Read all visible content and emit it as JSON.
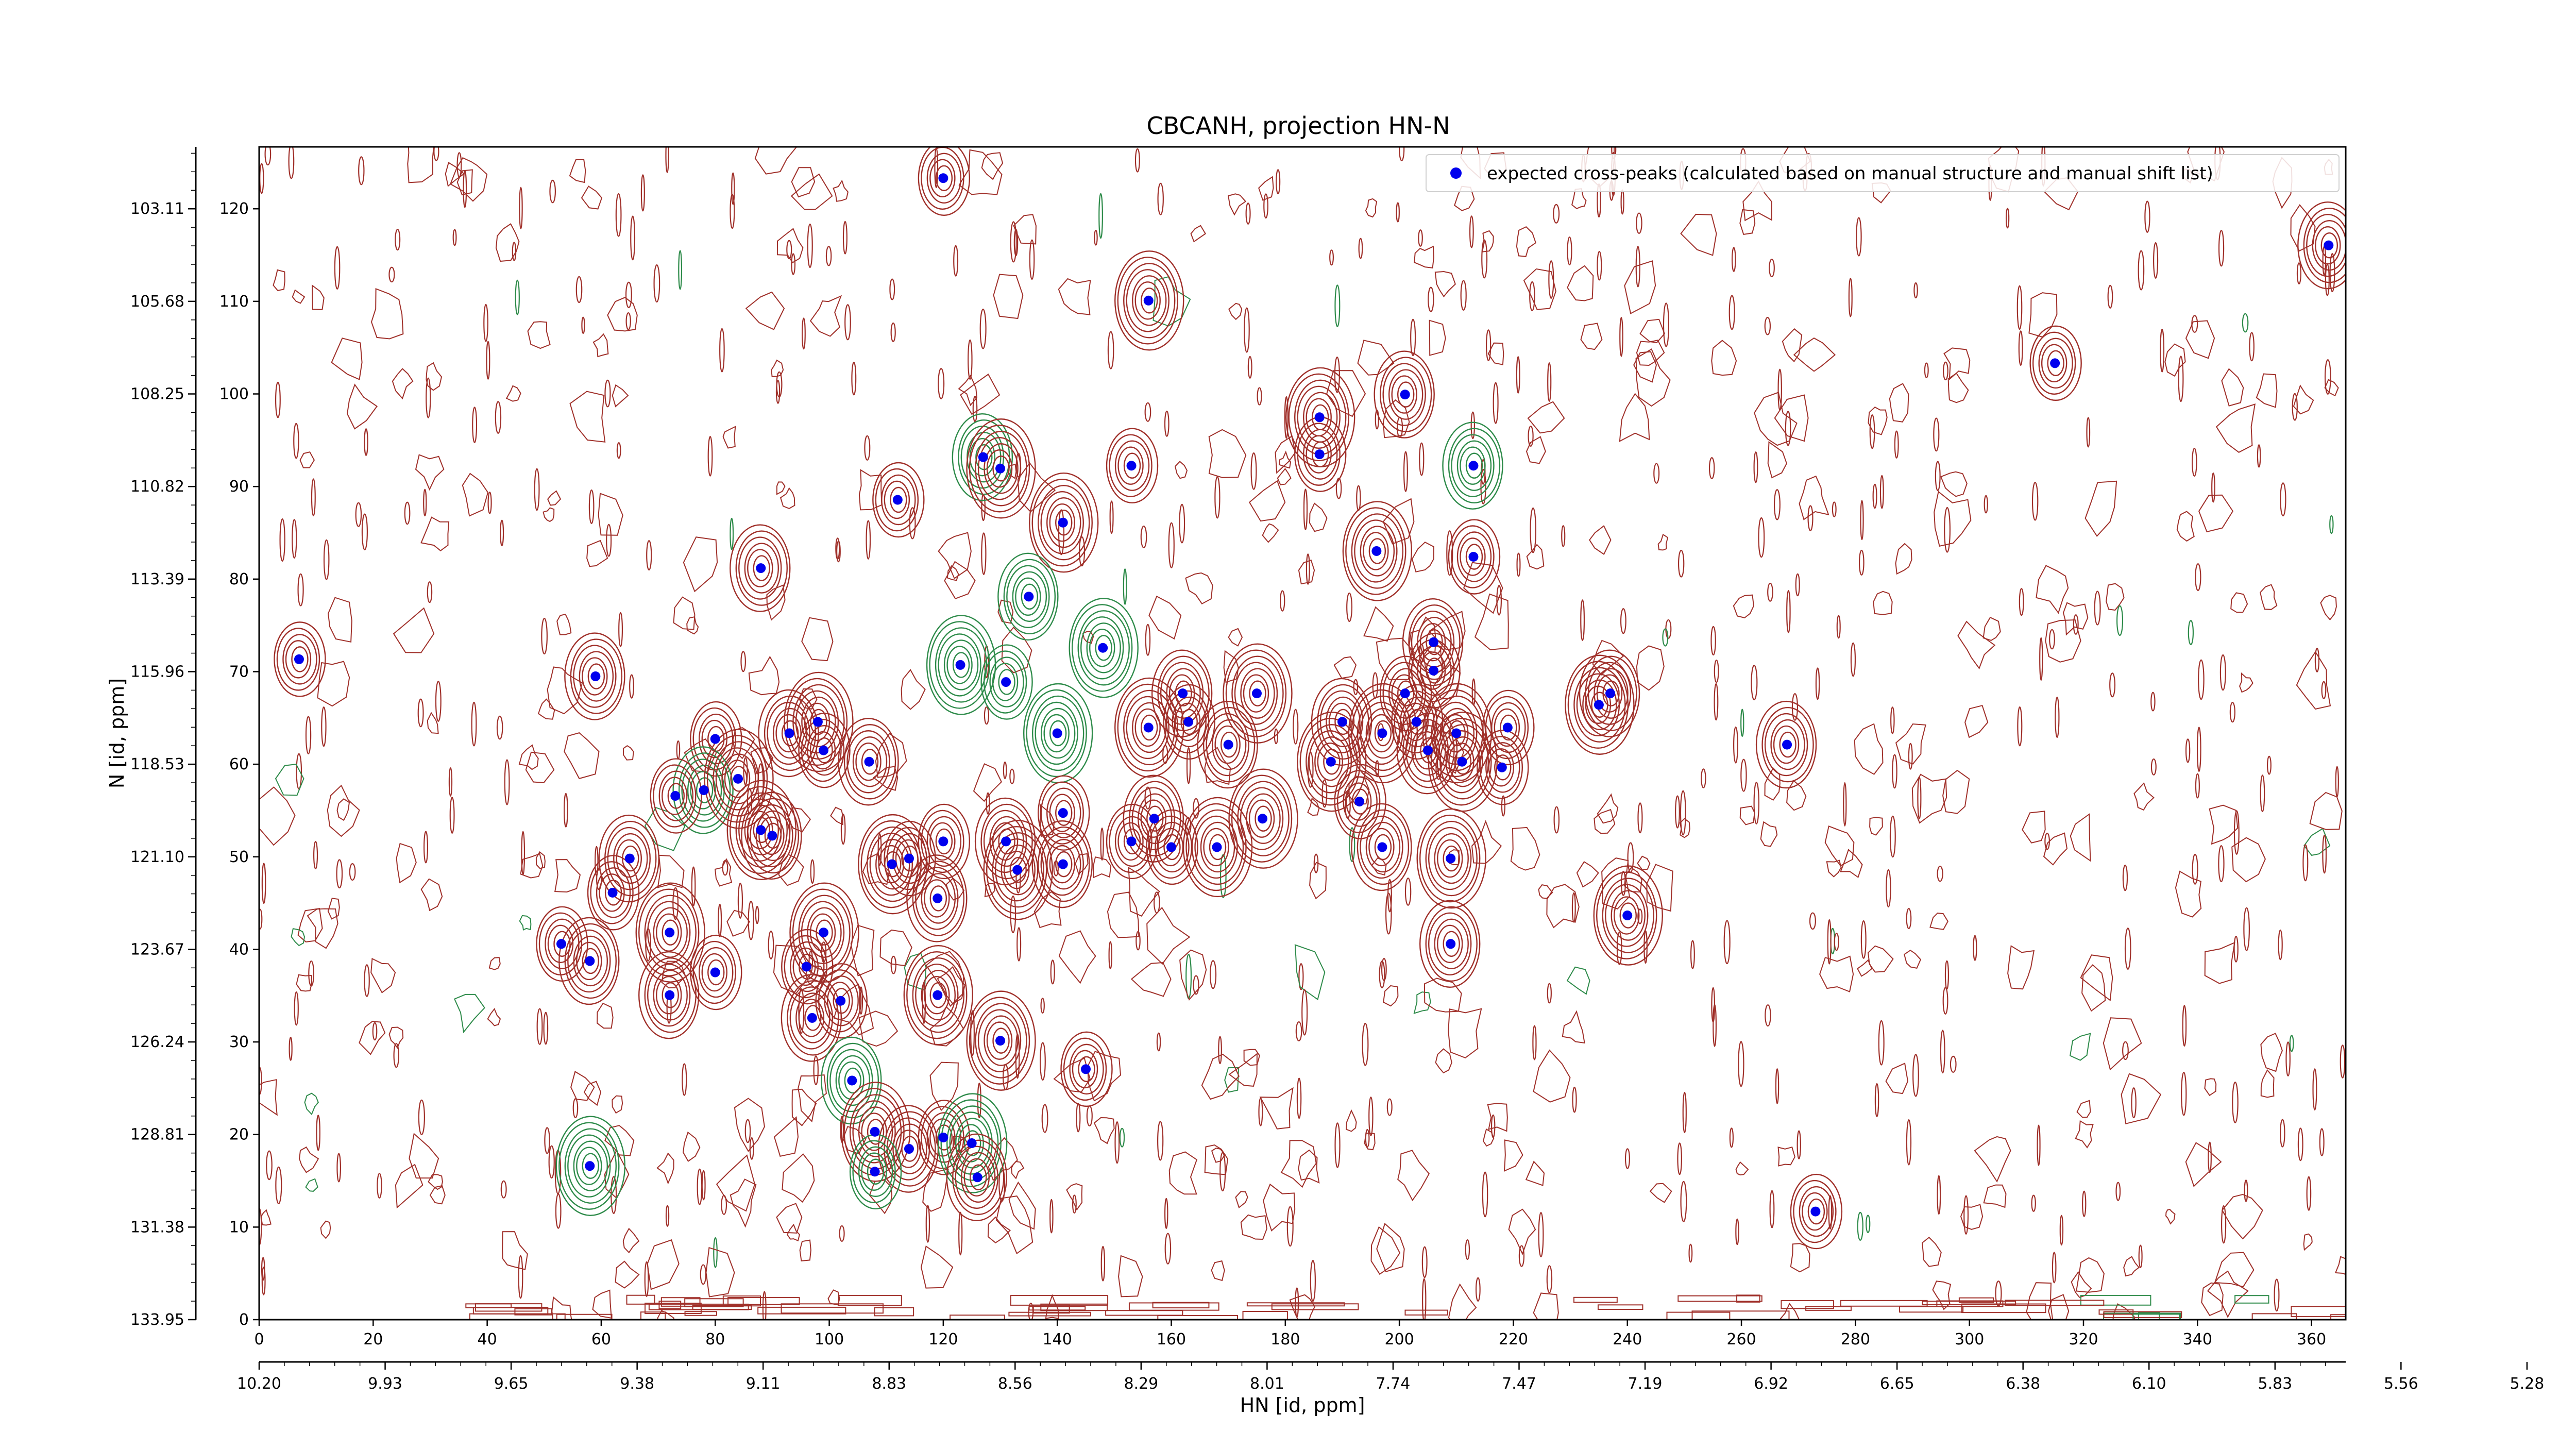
{
  "chart_data": {
    "type": "scatter",
    "title": "CBCANH, projection HN-N",
    "xlabel": "HN [id, ppm]",
    "ylabel": "N [id, ppm]",
    "xlim": [
      0,
      366
    ],
    "ylim": [
      0,
      206
    ],
    "x_index_ticks": [
      "0",
      "20",
      "40",
      "60",
      "80",
      "100",
      "120",
      "140",
      "160",
      "180",
      "200",
      "220",
      "240",
      "260",
      "280",
      "300",
      "320",
      "340",
      "360"
    ],
    "x_ppm_ticks": [
      "10.20",
      "9.93",
      "9.65",
      "9.38",
      "9.11",
      "8.83",
      "8.56",
      "8.29",
      "8.01",
      "7.74",
      "7.47",
      "7.19",
      "6.92",
      "6.65",
      "6.38",
      "6.10",
      "5.83",
      "5.56",
      "5.28"
    ],
    "y_index_ticks": [
      "0",
      "10",
      "20",
      "30",
      "40",
      "50",
      "60",
      "70",
      "80",
      "90",
      "100",
      "110",
      "120"
    ],
    "y_ppm_ticks": [
      "133.95",
      "131.38",
      "128.81",
      "126.24",
      "123.67",
      "121.10",
      "118.53",
      "115.96",
      "113.39",
      "110.82",
      "108.25",
      "105.68",
      "103.11"
    ],
    "legend": {
      "placement": "top-right",
      "entries": [
        "expected cross-peaks (calculated based on manual structure and manual shift list)"
      ]
    },
    "colors": {
      "positive_contour": "#a0302a",
      "negative_contour": "#2e8b4a",
      "marker": "#0000ee"
    },
    "series": [
      {
        "name": "expected cross-peaks (calculated based on manual structure and manual shift list)",
        "points": [
          [
            120,
            200.5
          ],
          [
            363,
            188.7
          ],
          [
            156,
            179
          ],
          [
            315,
            168
          ],
          [
            201,
            162.5
          ],
          [
            186,
            158.5
          ],
          [
            186,
            152
          ],
          [
            127,
            151.5
          ],
          [
            130,
            149.5
          ],
          [
            153,
            150
          ],
          [
            213,
            150
          ],
          [
            141,
            140
          ],
          [
            112,
            144
          ],
          [
            88,
            132
          ],
          [
            196,
            135
          ],
          [
            213,
            134
          ],
          [
            135,
            127
          ],
          [
            148,
            118
          ],
          [
            7,
            116
          ],
          [
            59,
            113
          ],
          [
            123,
            115
          ],
          [
            131,
            112
          ],
          [
            162,
            110
          ],
          [
            175,
            110
          ],
          [
            201,
            110
          ],
          [
            237,
            110
          ],
          [
            235,
            108
          ],
          [
            206,
            114
          ],
          [
            206,
            119
          ],
          [
            140,
            103
          ],
          [
            80,
            102
          ],
          [
            93,
            103
          ],
          [
            98,
            105
          ],
          [
            99,
            100
          ],
          [
            107,
            98
          ],
          [
            156,
            104
          ],
          [
            163,
            105
          ],
          [
            170,
            101
          ],
          [
            210,
            103
          ],
          [
            219,
            104
          ],
          [
            190,
            105
          ],
          [
            197,
            103
          ],
          [
            203,
            105
          ],
          [
            205,
            100
          ],
          [
            211,
            98
          ],
          [
            218,
            97
          ],
          [
            268,
            101
          ],
          [
            188,
            98
          ],
          [
            193,
            91
          ],
          [
            78,
            93
          ],
          [
            84,
            95
          ],
          [
            73,
            92
          ],
          [
            90,
            85
          ],
          [
            88,
            86
          ],
          [
            141,
            89
          ],
          [
            157,
            88
          ],
          [
            176,
            88
          ],
          [
            153,
            84
          ],
          [
            131,
            84
          ],
          [
            168,
            83
          ],
          [
            160,
            83
          ],
          [
            197,
            83
          ],
          [
            209,
            81
          ],
          [
            120,
            84
          ],
          [
            65,
            81
          ],
          [
            111,
            80
          ],
          [
            114,
            81
          ],
          [
            141,
            80
          ],
          [
            133,
            79
          ],
          [
            62,
            75
          ],
          [
            119,
            74
          ],
          [
            99,
            68
          ],
          [
            96,
            62
          ],
          [
            209,
            66
          ],
          [
            240,
            71
          ],
          [
            53,
            66
          ],
          [
            58,
            63
          ],
          [
            72,
            68
          ],
          [
            80,
            61
          ],
          [
            72,
            57
          ],
          [
            119,
            57
          ],
          [
            102,
            56
          ],
          [
            97,
            53
          ],
          [
            130,
            49
          ],
          [
            145,
            44
          ],
          [
            104,
            42
          ],
          [
            108,
            33
          ],
          [
            120,
            32
          ],
          [
            114,
            30
          ],
          [
            125,
            31
          ],
          [
            108,
            26
          ],
          [
            126,
            25
          ],
          [
            58,
            27
          ],
          [
            273,
            19
          ]
        ]
      }
    ]
  }
}
